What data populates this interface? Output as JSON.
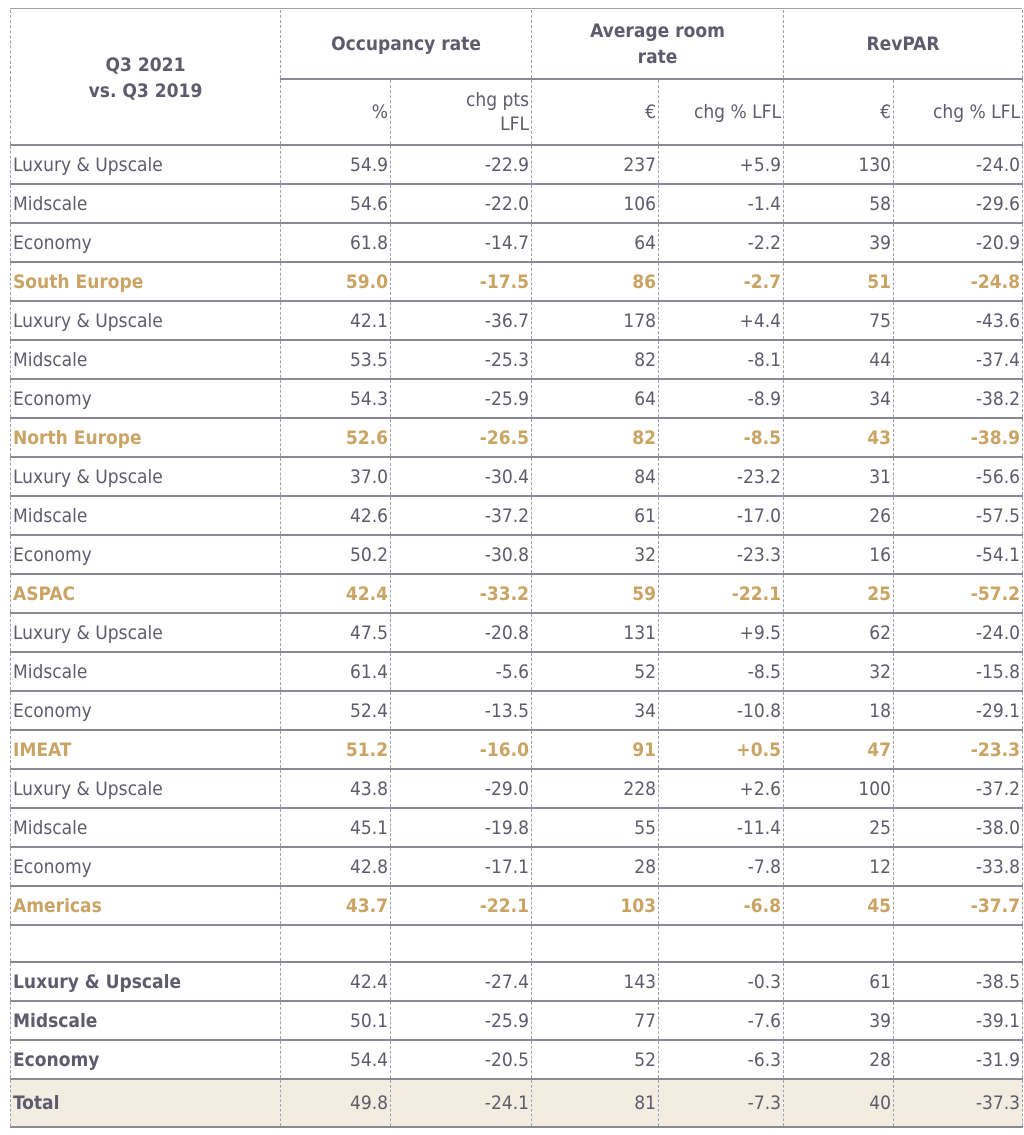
{
  "header": {
    "corner": [
      "Q3 2021",
      "vs. Q3 2019"
    ],
    "groups": [
      "Occupancy rate",
      "Average room rate",
      "RevPAR"
    ],
    "subheaders": [
      "%",
      "chg pts LFL",
      "€",
      "chg % LFL",
      "€",
      "chg % LFL"
    ]
  },
  "colors": {
    "text": "#5c5c6c",
    "region": "#c9a464",
    "total_bg": "#f3ece1"
  },
  "rows": [
    {
      "type": "data",
      "label": "Luxury & Upscale",
      "values": [
        "54.9",
        "-22.9",
        "237",
        "+5.9",
        "130",
        "-24.0"
      ]
    },
    {
      "type": "data",
      "label": "Midscale",
      "values": [
        "54.6",
        "-22.0",
        "106",
        "-1.4",
        "58",
        "-29.6"
      ]
    },
    {
      "type": "data",
      "label": "Economy",
      "values": [
        "61.8",
        "-14.7",
        "64",
        "-2.2",
        "39",
        "-20.9"
      ]
    },
    {
      "type": "region",
      "label": "South Europe",
      "values": [
        "59.0",
        "-17.5",
        "86",
        "-2.7",
        "51",
        "-24.8"
      ]
    },
    {
      "type": "data",
      "label": "Luxury & Upscale",
      "values": [
        "42.1",
        "-36.7",
        "178",
        "+4.4",
        "75",
        "-43.6"
      ]
    },
    {
      "type": "data",
      "label": "Midscale",
      "values": [
        "53.5",
        "-25.3",
        "82",
        "-8.1",
        "44",
        "-37.4"
      ]
    },
    {
      "type": "data",
      "label": "Economy",
      "values": [
        "54.3",
        "-25.9",
        "64",
        "-8.9",
        "34",
        "-38.2"
      ]
    },
    {
      "type": "region",
      "label": "North Europe",
      "values": [
        "52.6",
        "-26.5",
        "82",
        "-8.5",
        "43",
        "-38.9"
      ]
    },
    {
      "type": "data",
      "label": "Luxury & Upscale",
      "values": [
        "37.0",
        "-30.4",
        "84",
        "-23.2",
        "31",
        "-56.6"
      ]
    },
    {
      "type": "data",
      "label": "Midscale",
      "values": [
        "42.6",
        "-37.2",
        "61",
        "-17.0",
        "26",
        "-57.5"
      ]
    },
    {
      "type": "data",
      "label": "Economy",
      "values": [
        "50.2",
        "-30.8",
        "32",
        "-23.3",
        "16",
        "-54.1"
      ]
    },
    {
      "type": "region",
      "label": "ASPAC",
      "values": [
        "42.4",
        "-33.2",
        "59",
        "-22.1",
        "25",
        "-57.2"
      ]
    },
    {
      "type": "data",
      "label": "Luxury & Upscale",
      "values": [
        "47.5",
        "-20.8",
        "131",
        "+9.5",
        "62",
        "-24.0"
      ]
    },
    {
      "type": "data",
      "label": "Midscale",
      "values": [
        "61.4",
        "-5.6",
        "52",
        "-8.5",
        "32",
        "-15.8"
      ]
    },
    {
      "type": "data",
      "label": "Economy",
      "values": [
        "52.4",
        "-13.5",
        "34",
        "-10.8",
        "18",
        "-29.1"
      ]
    },
    {
      "type": "region",
      "label": "IMEAT",
      "values": [
        "51.2",
        "-16.0",
        "91",
        "+0.5",
        "47",
        "-23.3"
      ]
    },
    {
      "type": "data",
      "label": "Luxury & Upscale",
      "values": [
        "43.8",
        "-29.0",
        "228",
        "+2.6",
        "100",
        "-37.2"
      ]
    },
    {
      "type": "data",
      "label": "Midscale",
      "values": [
        "45.1",
        "-19.8",
        "55",
        "-11.4",
        "25",
        "-38.0"
      ]
    },
    {
      "type": "data",
      "label": "Economy",
      "values": [
        "42.8",
        "-17.1",
        "28",
        "-7.8",
        "12",
        "-33.8"
      ]
    },
    {
      "type": "region",
      "label": "Americas",
      "values": [
        "43.7",
        "-22.1",
        "103",
        "-6.8",
        "45",
        "-37.7"
      ]
    },
    {
      "type": "blank"
    },
    {
      "type": "group",
      "label": "Luxury & Upscale",
      "values": [
        "42.4",
        "-27.4",
        "143",
        "-0.3",
        "61",
        "-38.5"
      ]
    },
    {
      "type": "group",
      "label": "Midscale",
      "values": [
        "50.1",
        "-25.9",
        "77",
        "-7.6",
        "39",
        "-39.1"
      ]
    },
    {
      "type": "group",
      "label": "Economy",
      "values": [
        "54.4",
        "-20.5",
        "52",
        "-6.3",
        "28",
        "-31.9"
      ]
    },
    {
      "type": "total",
      "label": "Total",
      "values": [
        "49.8",
        "-24.1",
        "81",
        "-7.3",
        "40",
        "-37.3"
      ]
    }
  ]
}
